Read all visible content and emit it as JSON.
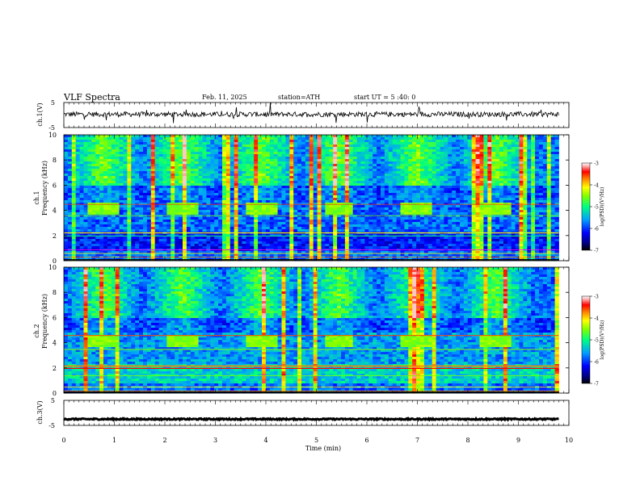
{
  "header": {
    "title": "VLF Spectra",
    "date": "Feb. 11, 2025",
    "station": "station=ATH",
    "start": "start UT = 5 :40: 0"
  },
  "chart_data": [
    {
      "type": "line",
      "panel": "ch1-waveform",
      "ylabel": "ch.1(V)",
      "yticks": [
        "5",
        "-5"
      ],
      "ylim": [
        -5,
        5
      ],
      "baseline": 0.3,
      "noise_amplitude": 1.0
    },
    {
      "type": "heatmap",
      "panel": "ch1-spectrogram",
      "ylabel": "ch.1\nFrequency (kHz)",
      "ylabel_line1": "ch.1",
      "ylabel_line2": "Frequency (kHz)",
      "ylim": [
        0,
        10
      ],
      "yticks": [
        "0",
        "2",
        "4",
        "6",
        "8",
        "10"
      ],
      "bursts_min": [
        0.8,
        2.35,
        3.9,
        5.45,
        7.0,
        8.55
      ],
      "burst_band_khz": [
        3.6,
        4.6
      ],
      "colorbar": {
        "label": "log(PSD)(V²/Hz)",
        "ticks": [
          "-3",
          "-4",
          "-5",
          "-6",
          "-7"
        ],
        "range": [
          -7,
          -3
        ]
      }
    },
    {
      "type": "heatmap",
      "panel": "ch2-spectrogram",
      "ylabel_line1": "ch.2",
      "ylabel_line2": "Frequency (kHz)",
      "ylim": [
        0,
        10
      ],
      "yticks": [
        "0",
        "2",
        "4",
        "6",
        "8",
        "10"
      ],
      "bursts_min": [
        0.8,
        2.35,
        3.9,
        5.45,
        7.0,
        8.55
      ],
      "burst_band_khz": [
        3.6,
        4.6
      ],
      "colorbar": {
        "label": "log(PSD)(V²/Hz)",
        "ticks": [
          "-3",
          "-4",
          "-5",
          "-6",
          "-7"
        ],
        "range": [
          -7,
          -3
        ]
      }
    },
    {
      "type": "line",
      "panel": "ch3-waveform",
      "ylabel": "ch.3(V)",
      "yticks": [
        "5",
        "-5"
      ],
      "ylim": [
        -5,
        5
      ],
      "baseline": -2.5,
      "noise_amplitude": 0.25
    }
  ],
  "xaxis": {
    "label": "Time (min)",
    "ticks": [
      "0",
      "1",
      "2",
      "3",
      "4",
      "5",
      "6",
      "7",
      "8",
      "9",
      "10"
    ],
    "xlim": [
      0,
      10
    ],
    "data_end": 9.8
  }
}
